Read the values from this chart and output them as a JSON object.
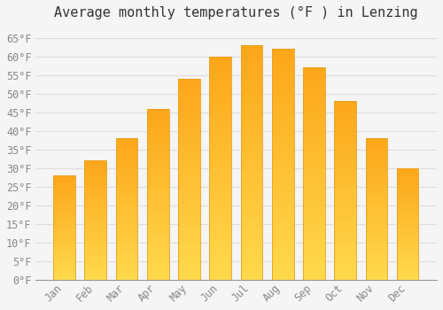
{
  "title": "Average monthly temperatures (°F ) in Lenzing",
  "months": [
    "Jan",
    "Feb",
    "Mar",
    "Apr",
    "May",
    "Jun",
    "Jul",
    "Aug",
    "Sep",
    "Oct",
    "Nov",
    "Dec"
  ],
  "values": [
    28,
    32,
    38,
    46,
    54,
    60,
    63,
    62,
    57,
    48,
    38,
    30
  ],
  "bar_color_top": "#FDB827",
  "bar_color_bottom": "#FFCC44",
  "bar_edge_color": "#E8A020",
  "background_color": "#f5f5f5",
  "plot_bg_color": "#f5f5f5",
  "grid_color": "#dddddd",
  "ylim": [
    0,
    68
  ],
  "yticks": [
    0,
    5,
    10,
    15,
    20,
    25,
    30,
    35,
    40,
    45,
    50,
    55,
    60,
    65
  ],
  "title_fontsize": 11,
  "tick_fontsize": 8.5,
  "font_family": "monospace",
  "tick_color": "#888888",
  "title_color": "#333333"
}
